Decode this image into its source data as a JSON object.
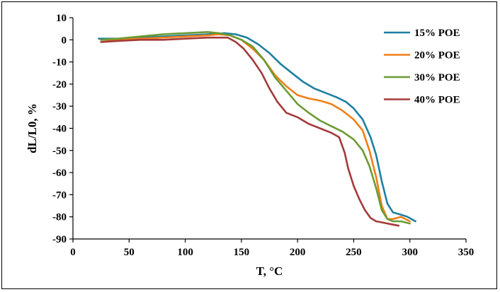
{
  "chart_data": {
    "type": "line",
    "title": "",
    "xlabel": "T, °C",
    "ylabel": "dL/L0, %",
    "xlim": [
      0,
      350
    ],
    "ylim": [
      -90,
      10
    ],
    "xticks": [
      0,
      50,
      100,
      150,
      200,
      250,
      300,
      350
    ],
    "yticks": [
      10,
      0,
      -10,
      -20,
      -30,
      -40,
      -50,
      -60,
      -70,
      -80,
      -90
    ],
    "grid": false,
    "legend_position": "top-right",
    "series": [
      {
        "name": "15% POE",
        "color": "#1f7fa0",
        "x": [
          23,
          40,
          60,
          80,
          100,
          120,
          135,
          145,
          155,
          165,
          175,
          185,
          195,
          205,
          215,
          225,
          235,
          243,
          250,
          258,
          265,
          270,
          275,
          280,
          285,
          292,
          298,
          305
        ],
        "y": [
          0.5,
          0.5,
          1,
          1.5,
          2,
          2.5,
          3,
          2.5,
          1,
          -2,
          -6,
          -11,
          -15,
          -19,
          -22,
          -24,
          -26,
          -28,
          -31,
          -36,
          -44,
          -52,
          -64,
          -74,
          -78,
          -79,
          -80,
          -82
        ]
      },
      {
        "name": "20% POE",
        "color": "#f07f1a",
        "x": [
          25,
          40,
          60,
          80,
          100,
          120,
          130,
          140,
          150,
          160,
          170,
          180,
          190,
          200,
          210,
          220,
          230,
          240,
          250,
          258,
          264,
          270,
          275,
          280,
          285,
          292,
          300
        ],
        "y": [
          0,
          0,
          0.5,
          1,
          1.5,
          2,
          2.5,
          2,
          0,
          -4,
          -9,
          -16,
          -21,
          -25,
          -26.5,
          -27.5,
          -29,
          -32,
          -36,
          -41,
          -50,
          -62,
          -75,
          -81,
          -81,
          -80,
          -82
        ]
      },
      {
        "name": "30% POE",
        "color": "#6b9b32",
        "x": [
          25,
          40,
          60,
          80,
          100,
          120,
          130,
          140,
          150,
          160,
          170,
          180,
          190,
          200,
          210,
          220,
          230,
          240,
          250,
          258,
          264,
          270,
          275,
          280,
          285,
          292,
          300
        ],
        "y": [
          0,
          0.5,
          1.5,
          2.5,
          3,
          3.5,
          3,
          2,
          0,
          -3,
          -9,
          -17,
          -23,
          -29,
          -33,
          -36.5,
          -39,
          -41.5,
          -45,
          -50,
          -57,
          -67,
          -77,
          -81,
          -82,
          -82,
          -83
        ]
      },
      {
        "name": "40% POE",
        "color": "#a43a3a",
        "x": [
          25,
          40,
          60,
          80,
          100,
          120,
          130,
          138,
          145,
          152,
          160,
          168,
          175,
          182,
          190,
          200,
          210,
          220,
          230,
          237,
          242,
          245,
          250,
          255,
          260,
          265,
          270,
          275,
          280,
          285,
          290
        ],
        "y": [
          -1,
          -0.5,
          0,
          0,
          0.5,
          1,
          1,
          1,
          -1,
          -4,
          -9,
          -15,
          -22,
          -28,
          -33,
          -35,
          -38,
          -40,
          -42,
          -44,
          -51,
          -58,
          -66,
          -72,
          -77,
          -80.5,
          -82,
          -82.5,
          -83,
          -83.5,
          -84
        ]
      }
    ]
  }
}
